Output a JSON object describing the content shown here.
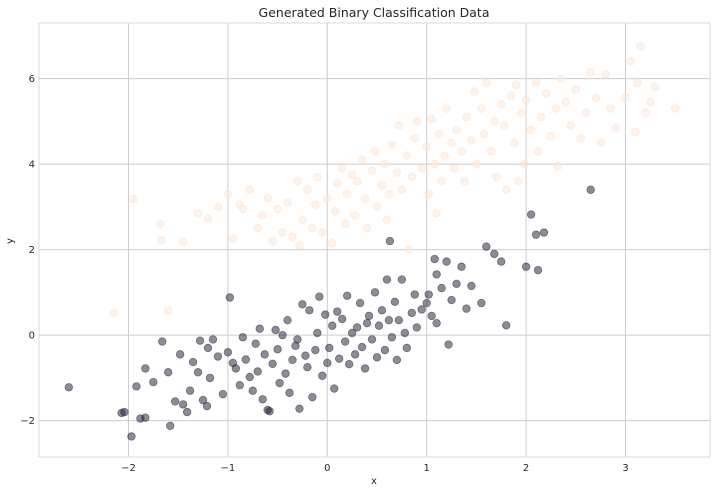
{
  "chart_data": {
    "type": "scatter",
    "title": "Generated Binary Classification Data",
    "xlabel": "x",
    "ylabel": "y",
    "xlim": [
      -2.9,
      3.85
    ],
    "ylim": [
      -2.85,
      7.3
    ],
    "xticks": [
      -2,
      -1,
      0,
      1,
      2,
      3
    ],
    "yticks": [
      -2,
      0,
      2,
      4,
      6
    ],
    "xtick_labels": [
      "−2",
      "−1",
      "0",
      "1",
      "2",
      "3"
    ],
    "ytick_labels": [
      "−2",
      "0",
      "2",
      "4",
      "6"
    ],
    "grid": true,
    "series": [
      {
        "color": "#fde8d8",
        "edge": "#f9dcc8",
        "opacity": 0.5,
        "points": [
          [
            -2.15,
            0.52
          ],
          [
            -1.95,
            3.18
          ],
          [
            -1.68,
            2.6
          ],
          [
            -1.67,
            2.22
          ],
          [
            -1.6,
            0.57
          ],
          [
            -1.45,
            2.18
          ],
          [
            -1.3,
            2.85
          ],
          [
            -1.2,
            2.72
          ],
          [
            -1.1,
            3.0
          ],
          [
            -1.0,
            3.3
          ],
          [
            -0.95,
            2.25
          ],
          [
            -0.88,
            3.05
          ],
          [
            -0.85,
            2.95
          ],
          [
            -0.78,
            3.4
          ],
          [
            -0.7,
            2.5
          ],
          [
            -0.65,
            2.8
          ],
          [
            -0.6,
            3.2
          ],
          [
            -0.55,
            2.2
          ],
          [
            -0.5,
            2.95
          ],
          [
            -0.45,
            2.4
          ],
          [
            -0.4,
            3.1
          ],
          [
            -0.35,
            2.3
          ],
          [
            -0.3,
            3.6
          ],
          [
            -0.28,
            2.1
          ],
          [
            -0.25,
            2.7
          ],
          [
            -0.2,
            3.4
          ],
          [
            -0.15,
            2.5
          ],
          [
            -0.12,
            3.05
          ],
          [
            -0.1,
            3.7
          ],
          [
            -0.05,
            2.4
          ],
          [
            0.0,
            3.2
          ],
          [
            0.05,
            2.15
          ],
          [
            0.08,
            2.9
          ],
          [
            0.1,
            3.55
          ],
          [
            0.15,
            3.9
          ],
          [
            0.18,
            2.6
          ],
          [
            0.2,
            3.3
          ],
          [
            0.25,
            3.75
          ],
          [
            0.28,
            2.8
          ],
          [
            0.3,
            3.6
          ],
          [
            0.35,
            4.1
          ],
          [
            0.38,
            3.2
          ],
          [
            0.4,
            2.5
          ],
          [
            0.45,
            3.85
          ],
          [
            0.48,
            4.3
          ],
          [
            0.5,
            3.0
          ],
          [
            0.55,
            3.5
          ],
          [
            0.58,
            4.0
          ],
          [
            0.6,
            2.7
          ],
          [
            0.62,
            3.3
          ],
          [
            0.65,
            4.45
          ],
          [
            0.7,
            3.8
          ],
          [
            0.72,
            4.9
          ],
          [
            0.75,
            3.4
          ],
          [
            0.8,
            4.2
          ],
          [
            0.82,
            2.0
          ],
          [
            0.85,
            3.7
          ],
          [
            0.88,
            4.6
          ],
          [
            0.9,
            5.0
          ],
          [
            0.95,
            3.9
          ],
          [
            1.0,
            4.4
          ],
          [
            1.02,
            3.3
          ],
          [
            1.05,
            5.05
          ],
          [
            1.08,
            4.0
          ],
          [
            1.1,
            2.85
          ],
          [
            1.12,
            4.7
          ],
          [
            1.15,
            3.6
          ],
          [
            1.18,
            4.2
          ],
          [
            1.2,
            5.3
          ],
          [
            1.25,
            4.5
          ],
          [
            1.28,
            3.9
          ],
          [
            1.3,
            4.8
          ],
          [
            1.35,
            4.3
          ],
          [
            1.38,
            3.6
          ],
          [
            1.4,
            5.1
          ],
          [
            1.45,
            4.55
          ],
          [
            1.48,
            5.7
          ],
          [
            1.5,
            4.0
          ],
          [
            1.55,
            5.3
          ],
          [
            1.58,
            4.7
          ],
          [
            1.6,
            5.9
          ],
          [
            1.65,
            4.3
          ],
          [
            1.68,
            5.0
          ],
          [
            1.7,
            3.7
          ],
          [
            1.75,
            5.4
          ],
          [
            1.78,
            4.9
          ],
          [
            1.8,
            3.4
          ],
          [
            1.85,
            5.6
          ],
          [
            1.88,
            4.5
          ],
          [
            1.9,
            5.85
          ],
          [
            1.92,
            3.6
          ],
          [
            1.95,
            5.2
          ],
          [
            1.98,
            4.0
          ],
          [
            2.0,
            5.5
          ],
          [
            2.05,
            4.8
          ],
          [
            2.1,
            5.9
          ],
          [
            2.12,
            4.3
          ],
          [
            2.15,
            5.1
          ],
          [
            2.2,
            5.65
          ],
          [
            2.25,
            4.65
          ],
          [
            2.3,
            5.3
          ],
          [
            2.32,
            3.95
          ],
          [
            2.35,
            6.0
          ],
          [
            2.4,
            5.45
          ],
          [
            2.45,
            4.9
          ],
          [
            2.5,
            5.75
          ],
          [
            2.55,
            4.6
          ],
          [
            2.6,
            5.2
          ],
          [
            2.65,
            6.15
          ],
          [
            2.7,
            5.55
          ],
          [
            2.75,
            4.5
          ],
          [
            2.8,
            6.1
          ],
          [
            2.85,
            5.3
          ],
          [
            2.9,
            4.85
          ],
          [
            3.0,
            5.55
          ],
          [
            3.05,
            6.4
          ],
          [
            3.1,
            4.75
          ],
          [
            3.12,
            5.9
          ],
          [
            3.15,
            6.75
          ],
          [
            3.2,
            5.2
          ],
          [
            3.25,
            5.45
          ],
          [
            3.3,
            5.8
          ],
          [
            3.5,
            5.3
          ]
        ]
      },
      {
        "color": "#1c1a2e",
        "edge": "#1c1a2e",
        "opacity": 0.5,
        "points": [
          [
            -2.6,
            -1.22
          ],
          [
            -2.07,
            -1.82
          ],
          [
            -2.04,
            -1.8
          ],
          [
            -1.97,
            -2.37
          ],
          [
            -1.92,
            -1.2
          ],
          [
            -1.88,
            -1.95
          ],
          [
            -1.83,
            -1.93
          ],
          [
            -1.83,
            -0.78
          ],
          [
            -1.75,
            -1.1
          ],
          [
            -1.66,
            -0.15
          ],
          [
            -1.6,
            -0.87
          ],
          [
            -1.58,
            -2.12
          ],
          [
            -1.53,
            -1.55
          ],
          [
            -1.48,
            -0.45
          ],
          [
            -1.45,
            -1.62
          ],
          [
            -1.41,
            -1.8
          ],
          [
            -1.38,
            -1.3
          ],
          [
            -1.35,
            -0.63
          ],
          [
            -1.3,
            -0.87
          ],
          [
            -1.28,
            -0.13
          ],
          [
            -1.25,
            -1.52
          ],
          [
            -1.21,
            -1.66
          ],
          [
            -1.2,
            -0.3
          ],
          [
            -1.18,
            -1.0
          ],
          [
            -1.15,
            -0.1
          ],
          [
            -1.1,
            -0.5
          ],
          [
            -1.05,
            -1.38
          ],
          [
            -1.0,
            -0.4
          ],
          [
            -0.98,
            0.88
          ],
          [
            -0.95,
            -0.65
          ],
          [
            -0.92,
            -0.78
          ],
          [
            -0.88,
            -1.17
          ],
          [
            -0.85,
            -0.05
          ],
          [
            -0.82,
            -0.57
          ],
          [
            -0.78,
            -0.98
          ],
          [
            -0.75,
            -1.3
          ],
          [
            -0.72,
            -0.2
          ],
          [
            -0.7,
            -0.85
          ],
          [
            -0.68,
            0.15
          ],
          [
            -0.65,
            -1.5
          ],
          [
            -0.63,
            -0.45
          ],
          [
            -0.6,
            -1.75
          ],
          [
            -0.58,
            -1.78
          ],
          [
            -0.55,
            -0.67
          ],
          [
            -0.52,
            0.12
          ],
          [
            -0.5,
            -0.33
          ],
          [
            -0.48,
            -1.12
          ],
          [
            -0.45,
            0.0
          ],
          [
            -0.42,
            -0.9
          ],
          [
            -0.4,
            0.35
          ],
          [
            -0.38,
            -1.35
          ],
          [
            -0.35,
            -0.58
          ],
          [
            -0.32,
            -0.25
          ],
          [
            -0.3,
            -0.1
          ],
          [
            -0.28,
            -1.72
          ],
          [
            -0.25,
            0.72
          ],
          [
            -0.22,
            -0.48
          ],
          [
            -0.2,
            -0.75
          ],
          [
            -0.18,
            0.58
          ],
          [
            -0.15,
            -1.45
          ],
          [
            -0.12,
            -0.35
          ],
          [
            -0.1,
            0.05
          ],
          [
            -0.08,
            0.9
          ],
          [
            -0.05,
            -0.95
          ],
          [
            -0.02,
            0.48
          ],
          [
            0.0,
            -0.65
          ],
          [
            0.02,
            -0.3
          ],
          [
            0.05,
            0.22
          ],
          [
            0.07,
            -1.25
          ],
          [
            0.1,
            0.55
          ],
          [
            0.12,
            -0.55
          ],
          [
            0.15,
            0.38
          ],
          [
            0.18,
            -0.15
          ],
          [
            0.2,
            0.92
          ],
          [
            0.22,
            -0.68
          ],
          [
            0.25,
            0.05
          ],
          [
            0.28,
            -0.45
          ],
          [
            0.3,
            0.18
          ],
          [
            0.33,
            0.75
          ],
          [
            0.35,
            -0.28
          ],
          [
            0.38,
            -0.78
          ],
          [
            0.4,
            0.28
          ],
          [
            0.42,
            0.45
          ],
          [
            0.45,
            -0.1
          ],
          [
            0.48,
            1.0
          ],
          [
            0.5,
            -0.52
          ],
          [
            0.52,
            0.22
          ],
          [
            0.55,
            0.58
          ],
          [
            0.58,
            -0.35
          ],
          [
            0.6,
            1.3
          ],
          [
            0.62,
            0.35
          ],
          [
            0.63,
            2.2
          ],
          [
            0.65,
            -0.05
          ],
          [
            0.68,
            0.78
          ],
          [
            0.7,
            -0.58
          ],
          [
            0.72,
            0.35
          ],
          [
            0.75,
            1.3
          ],
          [
            0.78,
            0.05
          ],
          [
            0.8,
            -0.3
          ],
          [
            0.85,
            0.52
          ],
          [
            0.88,
            0.95
          ],
          [
            0.9,
            0.18
          ],
          [
            0.95,
            0.6
          ],
          [
            1.0,
            0.75
          ],
          [
            1.02,
            0.95
          ],
          [
            1.05,
            0.45
          ],
          [
            1.08,
            1.78
          ],
          [
            1.1,
            1.42
          ],
          [
            1.1,
            0.28
          ],
          [
            1.15,
            1.1
          ],
          [
            1.2,
            1.72
          ],
          [
            1.22,
            -0.22
          ],
          [
            1.25,
            0.82
          ],
          [
            1.3,
            1.2
          ],
          [
            1.35,
            1.6
          ],
          [
            1.4,
            0.62
          ],
          [
            1.45,
            1.15
          ],
          [
            1.55,
            0.75
          ],
          [
            1.6,
            2.07
          ],
          [
            1.68,
            1.9
          ],
          [
            1.75,
            1.72
          ],
          [
            1.8,
            0.23
          ],
          [
            2.0,
            1.6
          ],
          [
            2.05,
            2.82
          ],
          [
            2.1,
            2.35
          ],
          [
            2.12,
            1.52
          ],
          [
            2.18,
            2.4
          ],
          [
            2.65,
            3.4
          ]
        ]
      }
    ]
  }
}
